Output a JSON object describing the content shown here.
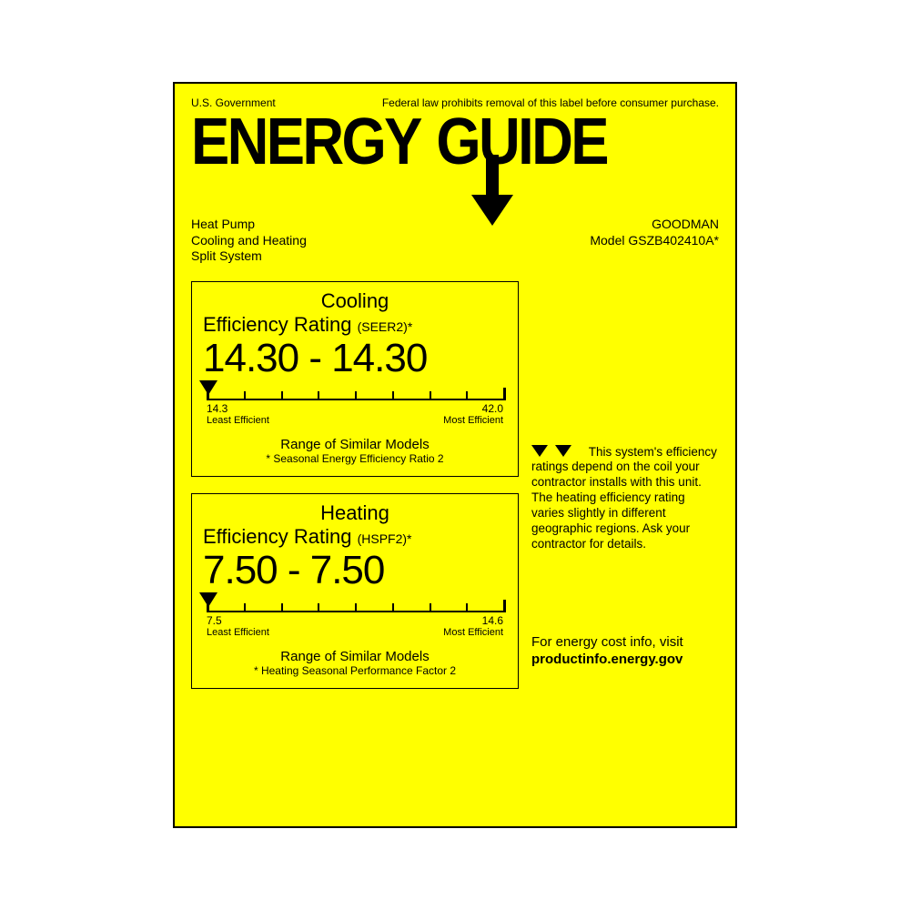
{
  "colors": {
    "bg": "#ffff00",
    "fg": "#000000",
    "page": "#ffffff"
  },
  "top": {
    "left": "U.S. Government",
    "right": "Federal law prohibits removal of this label before consumer purchase."
  },
  "logo": {
    "left": "ENERGY",
    "right": "GUIDE"
  },
  "product": {
    "line1": "Heat Pump",
    "line2": "Cooling and Heating",
    "line3": "Split System"
  },
  "brand": {
    "name": "GOODMAN",
    "model": "Model GSZB402410A*"
  },
  "cooling": {
    "title1": "Cooling",
    "title2": "Efficiency Rating",
    "metric": "(SEER2)*",
    "value": "14.30 - 14.30",
    "scale_min": "14.3",
    "scale_max": "42.0",
    "min_label": "Least Efficient",
    "max_label": "Most Efficient",
    "range_label": "Range of Similar Models",
    "footnote": "* Seasonal Energy Efficiency Ratio 2"
  },
  "heating": {
    "title1": "Heating",
    "title2": "Efficiency Rating",
    "metric": "(HSPF2)*",
    "value": "7.50 - 7.50",
    "scale_min": "7.5",
    "scale_max": "14.6",
    "min_label": "Least Efficient",
    "max_label": "Most Efficient",
    "range_label": "Range of Similar Models",
    "footnote": "* Heating Seasonal Performance Factor 2"
  },
  "side_note": {
    "lead": "This system's",
    "rest": "efficiency ratings depend on the coil your contractor installs with this unit.  The heating efficiency rating varies slightly in different geographic regions. Ask your contractor for details."
  },
  "bottom": {
    "line1": "For energy cost info, visit",
    "line2": "productinfo.energy.gov"
  },
  "scale_ticks": 9
}
